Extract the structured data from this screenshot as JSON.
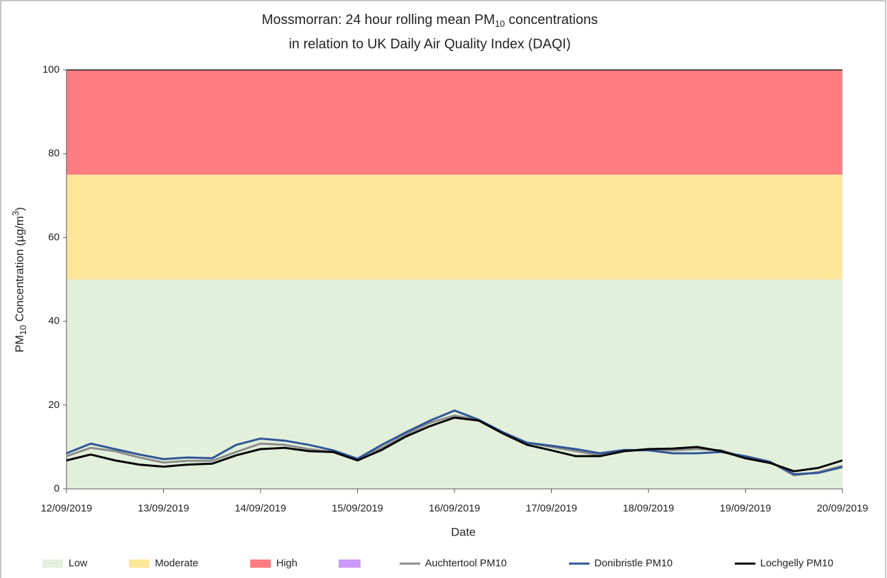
{
  "chart_data": {
    "type": "line",
    "title_parts": [
      "Mossmorran: 24 hour rolling mean PM",
      "10",
      " concentrations"
    ],
    "subtitle": "in relation to UK Daily Air Quality Index (DAQI)",
    "x_label": "Date",
    "y_label_parts": [
      "PM",
      "10",
      " Concentration (µg/m",
      "3",
      ")"
    ],
    "categories": [
      "12/09/2019",
      null,
      null,
      null,
      "13/09/2019",
      null,
      null,
      null,
      "14/09/2019",
      null,
      null,
      null,
      "15/09/2019",
      null,
      null,
      null,
      "16/09/2019",
      null,
      null,
      null,
      "17/09/2019",
      null,
      null,
      null,
      "18/09/2019",
      null,
      null,
      null,
      "19/09/2019",
      null,
      null,
      null,
      "20/09/2019"
    ],
    "ylim": [
      0,
      100
    ],
    "yticks": [
      0,
      20,
      40,
      60,
      80,
      100
    ],
    "bands": [
      {
        "name": "Low",
        "from": 0,
        "to": 50,
        "color": "#e2efda"
      },
      {
        "name": "Moderate",
        "from": 50,
        "to": 75,
        "color": "#ffe699"
      },
      {
        "name": "High",
        "from": 75,
        "to": 100,
        "color": "#ff7c80"
      }
    ],
    "series": [
      {
        "name": "Auchtertool PM10",
        "color": "#8c8c8c",
        "values": [
          7.8,
          9.8,
          9.0,
          7.5,
          6.3,
          6.7,
          6.7,
          8.8,
          10.8,
          10.5,
          9.5,
          8.8,
          7.0,
          9.8,
          13.0,
          15.8,
          17.5,
          16.5,
          13.5,
          11.0,
          10.0,
          9.0,
          8.0,
          9.0,
          9.3,
          9.2,
          9.5,
          9.2,
          7.5,
          6.5,
          3.2,
          4.0,
          5.5
        ]
      },
      {
        "name": "Donibristle PM10",
        "color": "#2f5597",
        "values": [
          8.5,
          10.8,
          9.5,
          8.2,
          7.1,
          7.5,
          7.3,
          10.5,
          12.0,
          11.5,
          10.5,
          9.2,
          7.2,
          10.5,
          13.5,
          16.3,
          18.7,
          16.5,
          13.5,
          11.0,
          10.3,
          9.5,
          8.5,
          9.3,
          9.2,
          8.5,
          8.5,
          8.8,
          7.8,
          6.5,
          3.5,
          3.8,
          5.2
        ]
      },
      {
        "name": "Lochgelly PM10",
        "color": "#000000",
        "values": [
          6.8,
          8.2,
          6.8,
          5.8,
          5.3,
          5.8,
          6.0,
          8.0,
          9.5,
          9.8,
          9.0,
          8.8,
          6.8,
          9.3,
          12.5,
          15.0,
          17.0,
          16.3,
          13.2,
          10.5,
          9.2,
          7.8,
          7.8,
          9.0,
          9.5,
          9.6,
          10.0,
          9.0,
          7.3,
          6.2,
          4.2,
          5.0,
          6.8
        ]
      }
    ]
  }
}
